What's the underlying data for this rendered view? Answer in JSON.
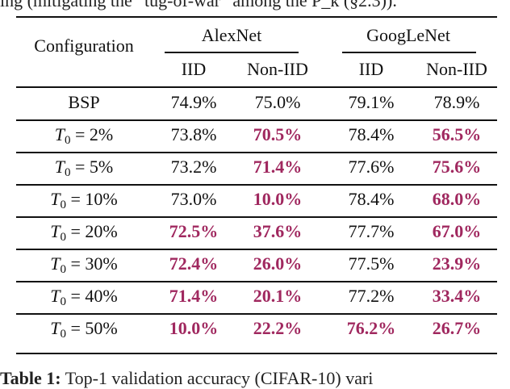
{
  "context_above": "ing (mitigating the “tug-of-war” among the P_k (§2.3)).",
  "caption": {
    "label": "Table 1:",
    "text": "Top-1 validation accuracy (CIFAR-10) vari"
  },
  "table": {
    "config_header": "Configuration",
    "groups": [
      "AlexNet",
      "GoogLeNet"
    ],
    "subheaders": [
      "IID",
      "Non-IID",
      "IID",
      "Non-IID"
    ],
    "highlight_color": "#a0285f",
    "rows": [
      {
        "config": "BSP",
        "math": false,
        "values": [
          "74.9%",
          "75.0%",
          "79.1%",
          "78.9%"
        ],
        "highlight": [
          false,
          false,
          false,
          false
        ]
      },
      {
        "config": "T_0 = 2%",
        "math": true,
        "var": "T",
        "sub": "0",
        "rest": " = 2%",
        "values": [
          "73.8%",
          "70.5%",
          "78.4%",
          "56.5%"
        ],
        "highlight": [
          false,
          true,
          false,
          true
        ]
      },
      {
        "config": "T_0 = 5%",
        "math": true,
        "var": "T",
        "sub": "0",
        "rest": " = 5%",
        "values": [
          "73.2%",
          "71.4%",
          "77.6%",
          "75.6%"
        ],
        "highlight": [
          false,
          true,
          false,
          true
        ]
      },
      {
        "config": "T_0 = 10%",
        "math": true,
        "var": "T",
        "sub": "0",
        "rest": " = 10%",
        "values": [
          "73.0%",
          "10.0%",
          "78.4%",
          "68.0%"
        ],
        "highlight": [
          false,
          true,
          false,
          true
        ]
      },
      {
        "config": "T_0 = 20%",
        "math": true,
        "var": "T",
        "sub": "0",
        "rest": " = 20%",
        "values": [
          "72.5%",
          "37.6%",
          "77.7%",
          "67.0%"
        ],
        "highlight": [
          true,
          true,
          false,
          true
        ]
      },
      {
        "config": "T_0 = 30%",
        "math": true,
        "var": "T",
        "sub": "0",
        "rest": " = 30%",
        "values": [
          "72.4%",
          "26.0%",
          "77.5%",
          "23.9%"
        ],
        "highlight": [
          true,
          true,
          false,
          true
        ]
      },
      {
        "config": "T_0 = 40%",
        "math": true,
        "var": "T",
        "sub": "0",
        "rest": " = 40%",
        "values": [
          "71.4%",
          "20.1%",
          "77.2%",
          "33.4%"
        ],
        "highlight": [
          true,
          true,
          false,
          true
        ]
      },
      {
        "config": "T_0 = 50%",
        "math": true,
        "var": "T",
        "sub": "0",
        "rest": " = 50%",
        "values": [
          "10.0%",
          "22.2%",
          "76.2%",
          "26.7%"
        ],
        "highlight": [
          true,
          true,
          true,
          true
        ]
      }
    ]
  }
}
